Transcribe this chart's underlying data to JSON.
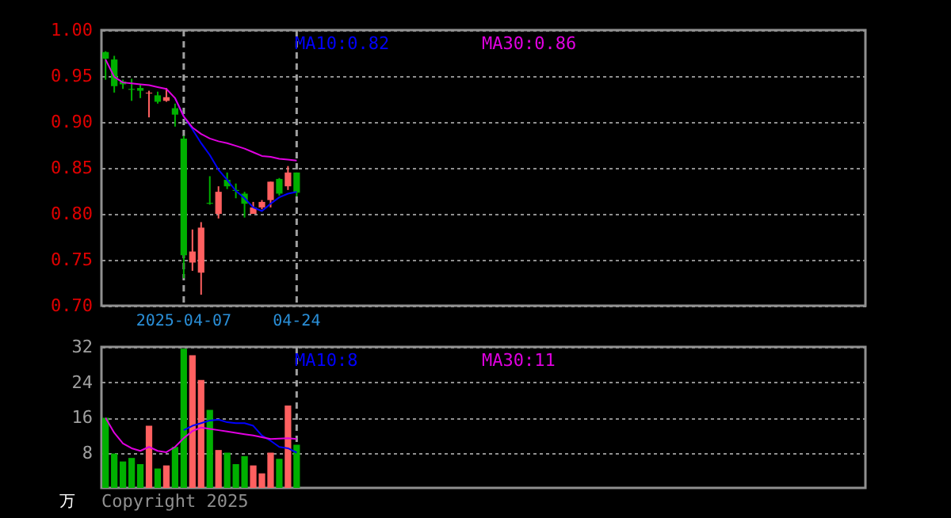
{
  "chart_data": [
    {
      "type": "candlestick",
      "categories": [
        null,
        null,
        null,
        null,
        null,
        null,
        null,
        null,
        null,
        "2025-04-07",
        null,
        null,
        null,
        null,
        null,
        null,
        null,
        null,
        null,
        null,
        null,
        null,
        "04-24",
        null,
        null,
        null,
        null,
        null,
        null,
        null,
        null,
        null,
        null,
        null,
        null,
        null,
        null,
        null,
        null,
        null,
        null,
        null,
        null,
        null,
        null,
        null,
        null,
        null,
        null,
        null,
        null,
        null,
        null,
        null,
        null,
        null,
        null,
        null,
        null,
        null,
        null,
        null,
        null,
        null,
        null,
        null,
        null,
        null,
        null,
        null,
        null,
        null,
        null,
        null,
        null,
        null,
        null,
        null,
        null,
        null,
        null,
        null,
        null,
        null,
        null,
        null,
        null,
        null
      ],
      "ohlc": [
        [
          0.976,
          0.977,
          0.946,
          0.969
        ],
        [
          0.968,
          0.972,
          0.932,
          0.939
        ],
        [
          0.944,
          0.946,
          0.936,
          0.941
        ],
        [
          0.936,
          0.947,
          0.923,
          0.935
        ],
        [
          0.937,
          0.941,
          0.926,
          0.934
        ],
        [
          0.931,
          0.934,
          0.905,
          0.932
        ],
        [
          0.929,
          0.933,
          0.92,
          0.922
        ],
        [
          0.923,
          0.937,
          0.922,
          0.927
        ],
        [
          0.915,
          0.92,
          0.895,
          0.908
        ],
        [
          0.882,
          0.885,
          0.73,
          0.755
        ],
        [
          0.747,
          0.783,
          0.738,
          0.759
        ],
        [
          0.736,
          0.791,
          0.712,
          0.785
        ],
        [
          0.812,
          0.841,
          0.81,
          0.811
        ],
        [
          0.8,
          0.83,
          0.795,
          0.824
        ],
        [
          0.837,
          0.845,
          0.827,
          0.83
        ],
        [
          0.826,
          0.833,
          0.817,
          0.825
        ],
        [
          0.822,
          0.824,
          0.796,
          0.811
        ],
        [
          0.8,
          0.813,
          0.8,
          0.807
        ],
        [
          0.807,
          0.815,
          0.805,
          0.813
        ],
        [
          0.815,
          0.835,
          0.807,
          0.835
        ],
        [
          0.838,
          0.839,
          0.82,
          0.822
        ],
        [
          0.83,
          0.852,
          0.826,
          0.845
        ],
        [
          0.845,
          0.845,
          0.819,
          0.823
        ],
        null,
        null,
        null,
        null,
        null,
        null,
        null,
        null,
        null,
        null,
        null,
        null,
        null,
        null,
        null,
        null,
        null,
        null,
        null,
        null,
        null,
        null,
        null,
        null,
        null,
        null,
        null,
        null,
        null,
        null,
        null,
        null,
        null,
        null,
        null,
        null,
        null,
        null,
        null,
        null,
        null,
        null,
        null,
        null,
        null,
        null,
        null,
        null,
        null,
        null,
        null,
        null,
        null,
        null,
        null,
        null,
        null,
        null,
        null,
        null,
        null,
        null,
        null,
        null,
        null
      ],
      "colors": [
        "#00b000",
        "#00b000",
        "#00b000",
        "#00b000",
        "#00b000",
        "#ff6060",
        "#00b000",
        "#ff6060",
        "#00b000",
        "#00b000",
        "#ff6060",
        "#ff6060",
        "#00b000",
        "#ff6060",
        "#00b000",
        "#00b000",
        "#00b000",
        "#ff6060",
        "#ff6060",
        "#ff6060",
        "#00b000",
        "#ff6060",
        "#00b000",
        null,
        null,
        null,
        null,
        null,
        null,
        null,
        null,
        null,
        null,
        null,
        null,
        null,
        null,
        null,
        null,
        null,
        null,
        null,
        null,
        null,
        null,
        null,
        null,
        null,
        null,
        null,
        null,
        null,
        null,
        null,
        null,
        null,
        null,
        null,
        null,
        null,
        null,
        null,
        null,
        null,
        null,
        null,
        null,
        null,
        null,
        null,
        null,
        null,
        null,
        null,
        null,
        null,
        null,
        null,
        null,
        null,
        null,
        null,
        null,
        null,
        null,
        null,
        null,
        null
      ],
      "ylim": [
        0.7,
        1.0
      ],
      "yticks": [
        {
          "value": 0.7,
          "label": "0.70"
        },
        {
          "value": 0.75,
          "label": "0.75"
        },
        {
          "value": 0.8,
          "label": "0.80"
        },
        {
          "value": 0.85,
          "label": "0.85"
        },
        {
          "value": 0.9,
          "label": "0.90"
        },
        {
          "value": 0.95,
          "label": "0.95"
        },
        {
          "value": 1.0,
          "label": "1.00"
        }
      ],
      "grid": "y",
      "legend": "top",
      "ref_lines": [
        {
          "axis": "x",
          "value": "2025-04-07",
          "color": "#a0a0a0",
          "line_style": "dashed"
        },
        {
          "axis": "x",
          "value": "04-24",
          "color": "#a0a0a0",
          "line_style": "dashed"
        }
      ],
      "series": [
        {
          "type": "line",
          "name": "MA10:0.82",
          "color": "#0000ff",
          "values": [
            null,
            null,
            null,
            null,
            null,
            null,
            null,
            null,
            0.926,
            0.906,
            0.892,
            0.877,
            0.864,
            0.848,
            0.837,
            0.825,
            0.817,
            0.807,
            0.803,
            0.811,
            0.818,
            0.822,
            0.824,
            null,
            null,
            null,
            null,
            null,
            null,
            null,
            null,
            null,
            null,
            null,
            null,
            null,
            null,
            null,
            null,
            null,
            null,
            null,
            null,
            null,
            null,
            null,
            null,
            null,
            null,
            null,
            null,
            null,
            null,
            null,
            null,
            null,
            null,
            null,
            null,
            null,
            null,
            null,
            null,
            null,
            null,
            null,
            null,
            null,
            null,
            null,
            null,
            null,
            null,
            null,
            null,
            null,
            null,
            null,
            null,
            null,
            null,
            null,
            null,
            null,
            null,
            null,
            null,
            null
          ]
        },
        {
          "type": "line",
          "name": "MA30:0.86",
          "color": "#e000e0",
          "values": [
            0.968,
            0.949,
            0.943,
            0.942,
            0.941,
            0.94,
            0.938,
            0.936,
            0.926,
            0.906,
            0.894,
            0.887,
            0.882,
            0.879,
            0.877,
            0.874,
            0.871,
            0.867,
            0.863,
            0.862,
            0.86,
            0.859,
            0.858,
            null,
            null,
            null,
            null,
            null,
            null,
            null,
            null,
            null,
            null,
            null,
            null,
            null,
            null,
            null,
            null,
            null,
            null,
            null,
            null,
            null,
            null,
            null,
            null,
            null,
            null,
            null,
            null,
            null,
            null,
            null,
            null,
            null,
            null,
            null,
            null,
            null,
            null,
            null,
            null,
            null,
            null,
            null,
            null,
            null,
            null,
            null,
            null,
            null,
            null,
            null,
            null,
            null,
            null,
            null,
            null,
            null,
            null,
            null,
            null,
            null,
            null,
            null,
            null,
            null
          ]
        }
      ]
    },
    {
      "type": "bar",
      "categories": [
        null,
        null,
        null,
        null,
        null,
        null,
        null,
        null,
        null,
        "2025-04-07",
        null,
        null,
        null,
        null,
        null,
        null,
        null,
        null,
        null,
        null,
        null,
        null,
        "04-24",
        null,
        null,
        null,
        null,
        null,
        null,
        null,
        null,
        null,
        null,
        null,
        null,
        null,
        null,
        null,
        null,
        null,
        null,
        null,
        null,
        null,
        null,
        null,
        null,
        null,
        null,
        null,
        null,
        null,
        null,
        null,
        null,
        null,
        null,
        null,
        null,
        null,
        null,
        null,
        null,
        null,
        null,
        null,
        null,
        null,
        null,
        null,
        null,
        null,
        null,
        null,
        null,
        null,
        null,
        null,
        null,
        null,
        null,
        null,
        null,
        null,
        null,
        null,
        null,
        null
      ],
      "ylabel": "万",
      "ylim": [
        0,
        32
      ],
      "yticks": [
        8,
        16,
        24,
        32
      ],
      "grid": "y",
      "legend": "top",
      "tick_labels": "y",
      "annotations": [
        "Copyright 2025"
      ],
      "ref_lines": [
        {
          "axis": "x",
          "value": "04-24",
          "color": "#a0a0a0",
          "line_style": "dashed"
        }
      ],
      "series": [
        {
          "type": "bar",
          "colors": [
            "#00b000",
            "#00b000",
            "#00b000",
            "#00b000",
            "#00b000",
            "#ff6060",
            "#00b000",
            "#ff6060",
            "#00b000",
            "#00b000",
            "#ff6060",
            "#ff6060",
            "#00b000",
            "#ff6060",
            "#00b000",
            "#00b000",
            "#00b000",
            "#ff6060",
            "#ff6060",
            "#ff6060",
            "#00b000",
            "#ff6060",
            "#00b000",
            null,
            null,
            null,
            null,
            null,
            null,
            null,
            null,
            null,
            null,
            null,
            null,
            null,
            null,
            null,
            null,
            null,
            null,
            null,
            null,
            null,
            null,
            null,
            null,
            null,
            null,
            null,
            null,
            null,
            null,
            null,
            null,
            null,
            null,
            null,
            null,
            null,
            null,
            null,
            null,
            null,
            null,
            null,
            null,
            null,
            null,
            null,
            null,
            null,
            null,
            null,
            null,
            null,
            null,
            null,
            null,
            null,
            null,
            null,
            null,
            null,
            null,
            null,
            null,
            null
          ],
          "values": [
            15.9,
            7.8,
            6.0,
            6.8,
            5.4,
            14.1,
            4.4,
            5.1,
            9.3,
            31.6,
            30.1,
            24.5,
            17.7,
            8.6,
            8.0,
            5.4,
            7.2,
            5.1,
            3.3,
            8.0,
            6.6,
            18.7,
            9.8,
            null,
            null,
            null,
            null,
            null,
            null,
            null,
            null,
            null,
            null,
            null,
            null,
            null,
            null,
            null,
            null,
            null,
            null,
            null,
            null,
            null,
            null,
            null,
            null,
            null,
            null,
            null,
            null,
            null,
            null,
            null,
            null,
            null,
            null,
            null,
            null,
            null,
            null,
            null,
            null,
            null,
            null,
            null,
            null,
            null,
            null,
            null,
            null,
            null,
            null,
            null,
            null,
            null,
            null,
            null,
            null,
            null,
            null,
            null,
            null,
            null,
            null,
            null,
            null,
            null
          ]
        },
        {
          "type": "line",
          "name": "MA10:8",
          "color": "#0000ff",
          "values": [
            null,
            null,
            null,
            null,
            null,
            null,
            null,
            null,
            null,
            13.1,
            14.1,
            14.7,
            15.3,
            15.5,
            14.9,
            14.7,
            14.7,
            14.1,
            11.9,
            10.7,
            9.3,
            9.0,
            8.0,
            null,
            null,
            null,
            null,
            null,
            null,
            null,
            null,
            null,
            null,
            null,
            null,
            null,
            null,
            null,
            null,
            null,
            null,
            null,
            null,
            null,
            null,
            null,
            null,
            null,
            null,
            null,
            null,
            null,
            null,
            null,
            null,
            null,
            null,
            null,
            null,
            null,
            null,
            null,
            null,
            null,
            null,
            null,
            null,
            null,
            null,
            null,
            null,
            null,
            null,
            null,
            null,
            null,
            null,
            null,
            null,
            null,
            null,
            null,
            null,
            null,
            null,
            null,
            null,
            null
          ]
        },
        {
          "type": "line",
          "name": "MA30:11",
          "color": "#e000e0",
          "values": [
            15.9,
            12.5,
            10.1,
            9.0,
            8.4,
            9.3,
            8.4,
            8.1,
            9.3,
            11.3,
            12.9,
            13.7,
            13.4,
            13.1,
            12.8,
            12.5,
            12.2,
            11.9,
            11.5,
            11.1,
            11.2,
            11.3,
            11.1,
            null,
            null,
            null,
            null,
            null,
            null,
            null,
            null,
            null,
            null,
            null,
            null,
            null,
            null,
            null,
            null,
            null,
            null,
            null,
            null,
            null,
            null,
            null,
            null,
            null,
            null,
            null,
            null,
            null,
            null,
            null,
            null,
            null,
            null,
            null,
            null,
            null,
            null,
            null,
            null,
            null,
            null,
            null,
            null,
            null,
            null,
            null,
            null,
            null,
            null,
            null,
            null,
            null,
            null,
            null,
            null,
            null,
            null,
            null,
            null,
            null,
            null,
            null,
            null,
            null
          ]
        }
      ]
    }
  ]
}
